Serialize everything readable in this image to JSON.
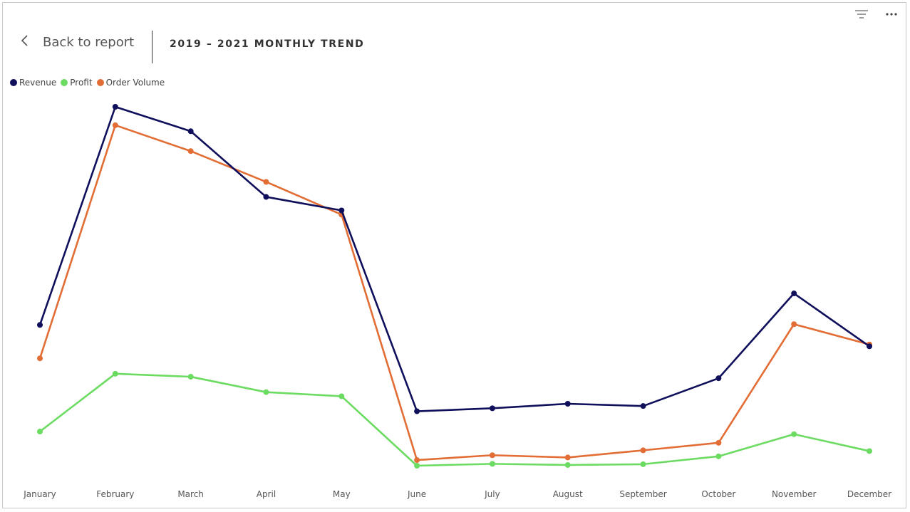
{
  "header": {
    "back_label": "Back to report",
    "title": "2019 – 2021 MONTHLY TREND"
  },
  "icons": {
    "back": "chevron-left-icon",
    "filter": "filter-icon",
    "more": "more-options-icon"
  },
  "legend": [
    {
      "name": "Revenue",
      "color": "#0f0f5c"
    },
    {
      "name": "Profit",
      "color": "#6cdb62"
    },
    {
      "name": "Order Volume",
      "color": "#e26d35"
    }
  ],
  "chart_data": {
    "type": "line",
    "title": "2019 – 2021 MONTHLY TREND",
    "xlabel": "",
    "ylabel": "",
    "categories": [
      "January",
      "February",
      "March",
      "April",
      "May",
      "June",
      "July",
      "August",
      "September",
      "October",
      "November",
      "December"
    ],
    "series": [
      {
        "name": "Revenue",
        "color": "#0f0f5c",
        "values": [
          37.5,
          95.6,
          89.1,
          71.6,
          68.0,
          14.5,
          15.3,
          16.5,
          15.9,
          23.3,
          45.9,
          31.8
        ]
      },
      {
        "name": "Profit",
        "color": "#6cdb62",
        "values": [
          9.1,
          24.5,
          23.7,
          19.6,
          18.5,
          0,
          0.5,
          0.2,
          0.4,
          2.5,
          8.4,
          3.9
        ]
      },
      {
        "name": "Order Volume",
        "color": "#e26d35",
        "values": [
          28.6,
          90.7,
          83.8,
          75.6,
          66.9,
          1.5,
          2.8,
          2.2,
          4.1,
          6.1,
          37.7,
          32.3
        ]
      }
    ],
    "ylim": [
      0,
      100
    ],
    "grid": false,
    "legend_position": "top-left"
  }
}
